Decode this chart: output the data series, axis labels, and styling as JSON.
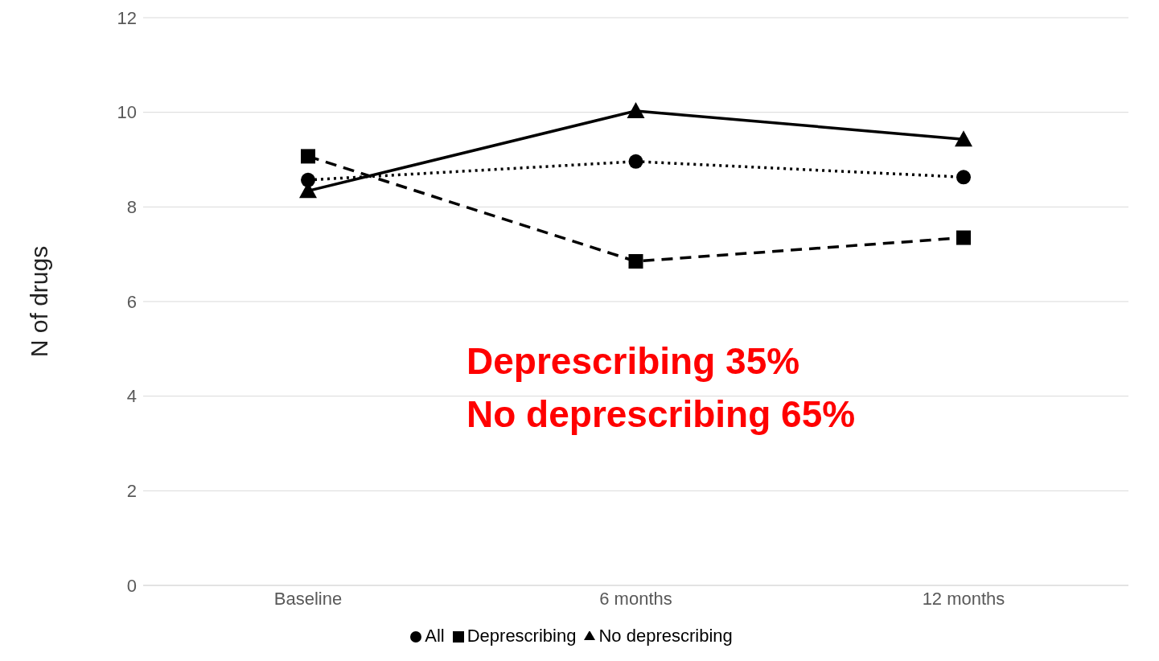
{
  "chart_data": {
    "type": "line",
    "ylabel": "N of drugs",
    "categories": [
      "Baseline",
      "6 months",
      "12 months"
    ],
    "series": [
      {
        "name": "All",
        "color": "#000000",
        "values": [
          8.57,
          8.96,
          8.63
        ],
        "marker": "circle",
        "line_style": "dotted"
      },
      {
        "name": "Deprescribing",
        "color": "#000000",
        "values": [
          9.07,
          6.85,
          7.35
        ],
        "marker": "square",
        "line_style": "dashed"
      },
      {
        "name": "No deprescribing",
        "color": "#000000",
        "values": [
          8.34,
          10.03,
          9.43
        ],
        "marker": "triangle",
        "line_style": "solid"
      }
    ],
    "ylim": [
      0,
      12
    ],
    "yticks": [
      0,
      2,
      4,
      6,
      8,
      10,
      12
    ],
    "grid": "y",
    "legend": "bottom",
    "annotations": [
      "Deprescribing 35%",
      "No deprescribing 65%"
    ]
  }
}
